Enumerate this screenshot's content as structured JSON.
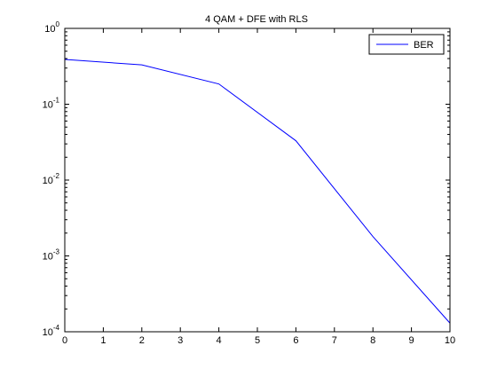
{
  "chart_data": {
    "type": "line",
    "title": "4 QAM + DFE with RLS",
    "xlabel": "",
    "ylabel": "",
    "x": [
      0,
      2,
      4,
      6,
      8,
      10
    ],
    "series": [
      {
        "name": "BER",
        "values": [
          0.39,
          0.33,
          0.185,
          0.033,
          0.0018,
          0.00013
        ],
        "color": "#0000ff"
      }
    ],
    "xlim": [
      0,
      10
    ],
    "ylim": [
      0.0001,
      1
    ],
    "yscale": "log",
    "x_ticks": [
      "0",
      "1",
      "2",
      "3",
      "4",
      "5",
      "6",
      "7",
      "8",
      "9",
      "10"
    ],
    "y_ticks": [
      {
        "value": 0.0001,
        "base": "10",
        "exp": "-4"
      },
      {
        "value": 0.001,
        "base": "10",
        "exp": "-3"
      },
      {
        "value": 0.01,
        "base": "10",
        "exp": "-2"
      },
      {
        "value": 0.1,
        "base": "10",
        "exp": "-1"
      },
      {
        "value": 1,
        "base": "10",
        "exp": "0"
      }
    ],
    "grid": false,
    "legend": {
      "position": "top-right",
      "entries": [
        "BER"
      ]
    }
  }
}
